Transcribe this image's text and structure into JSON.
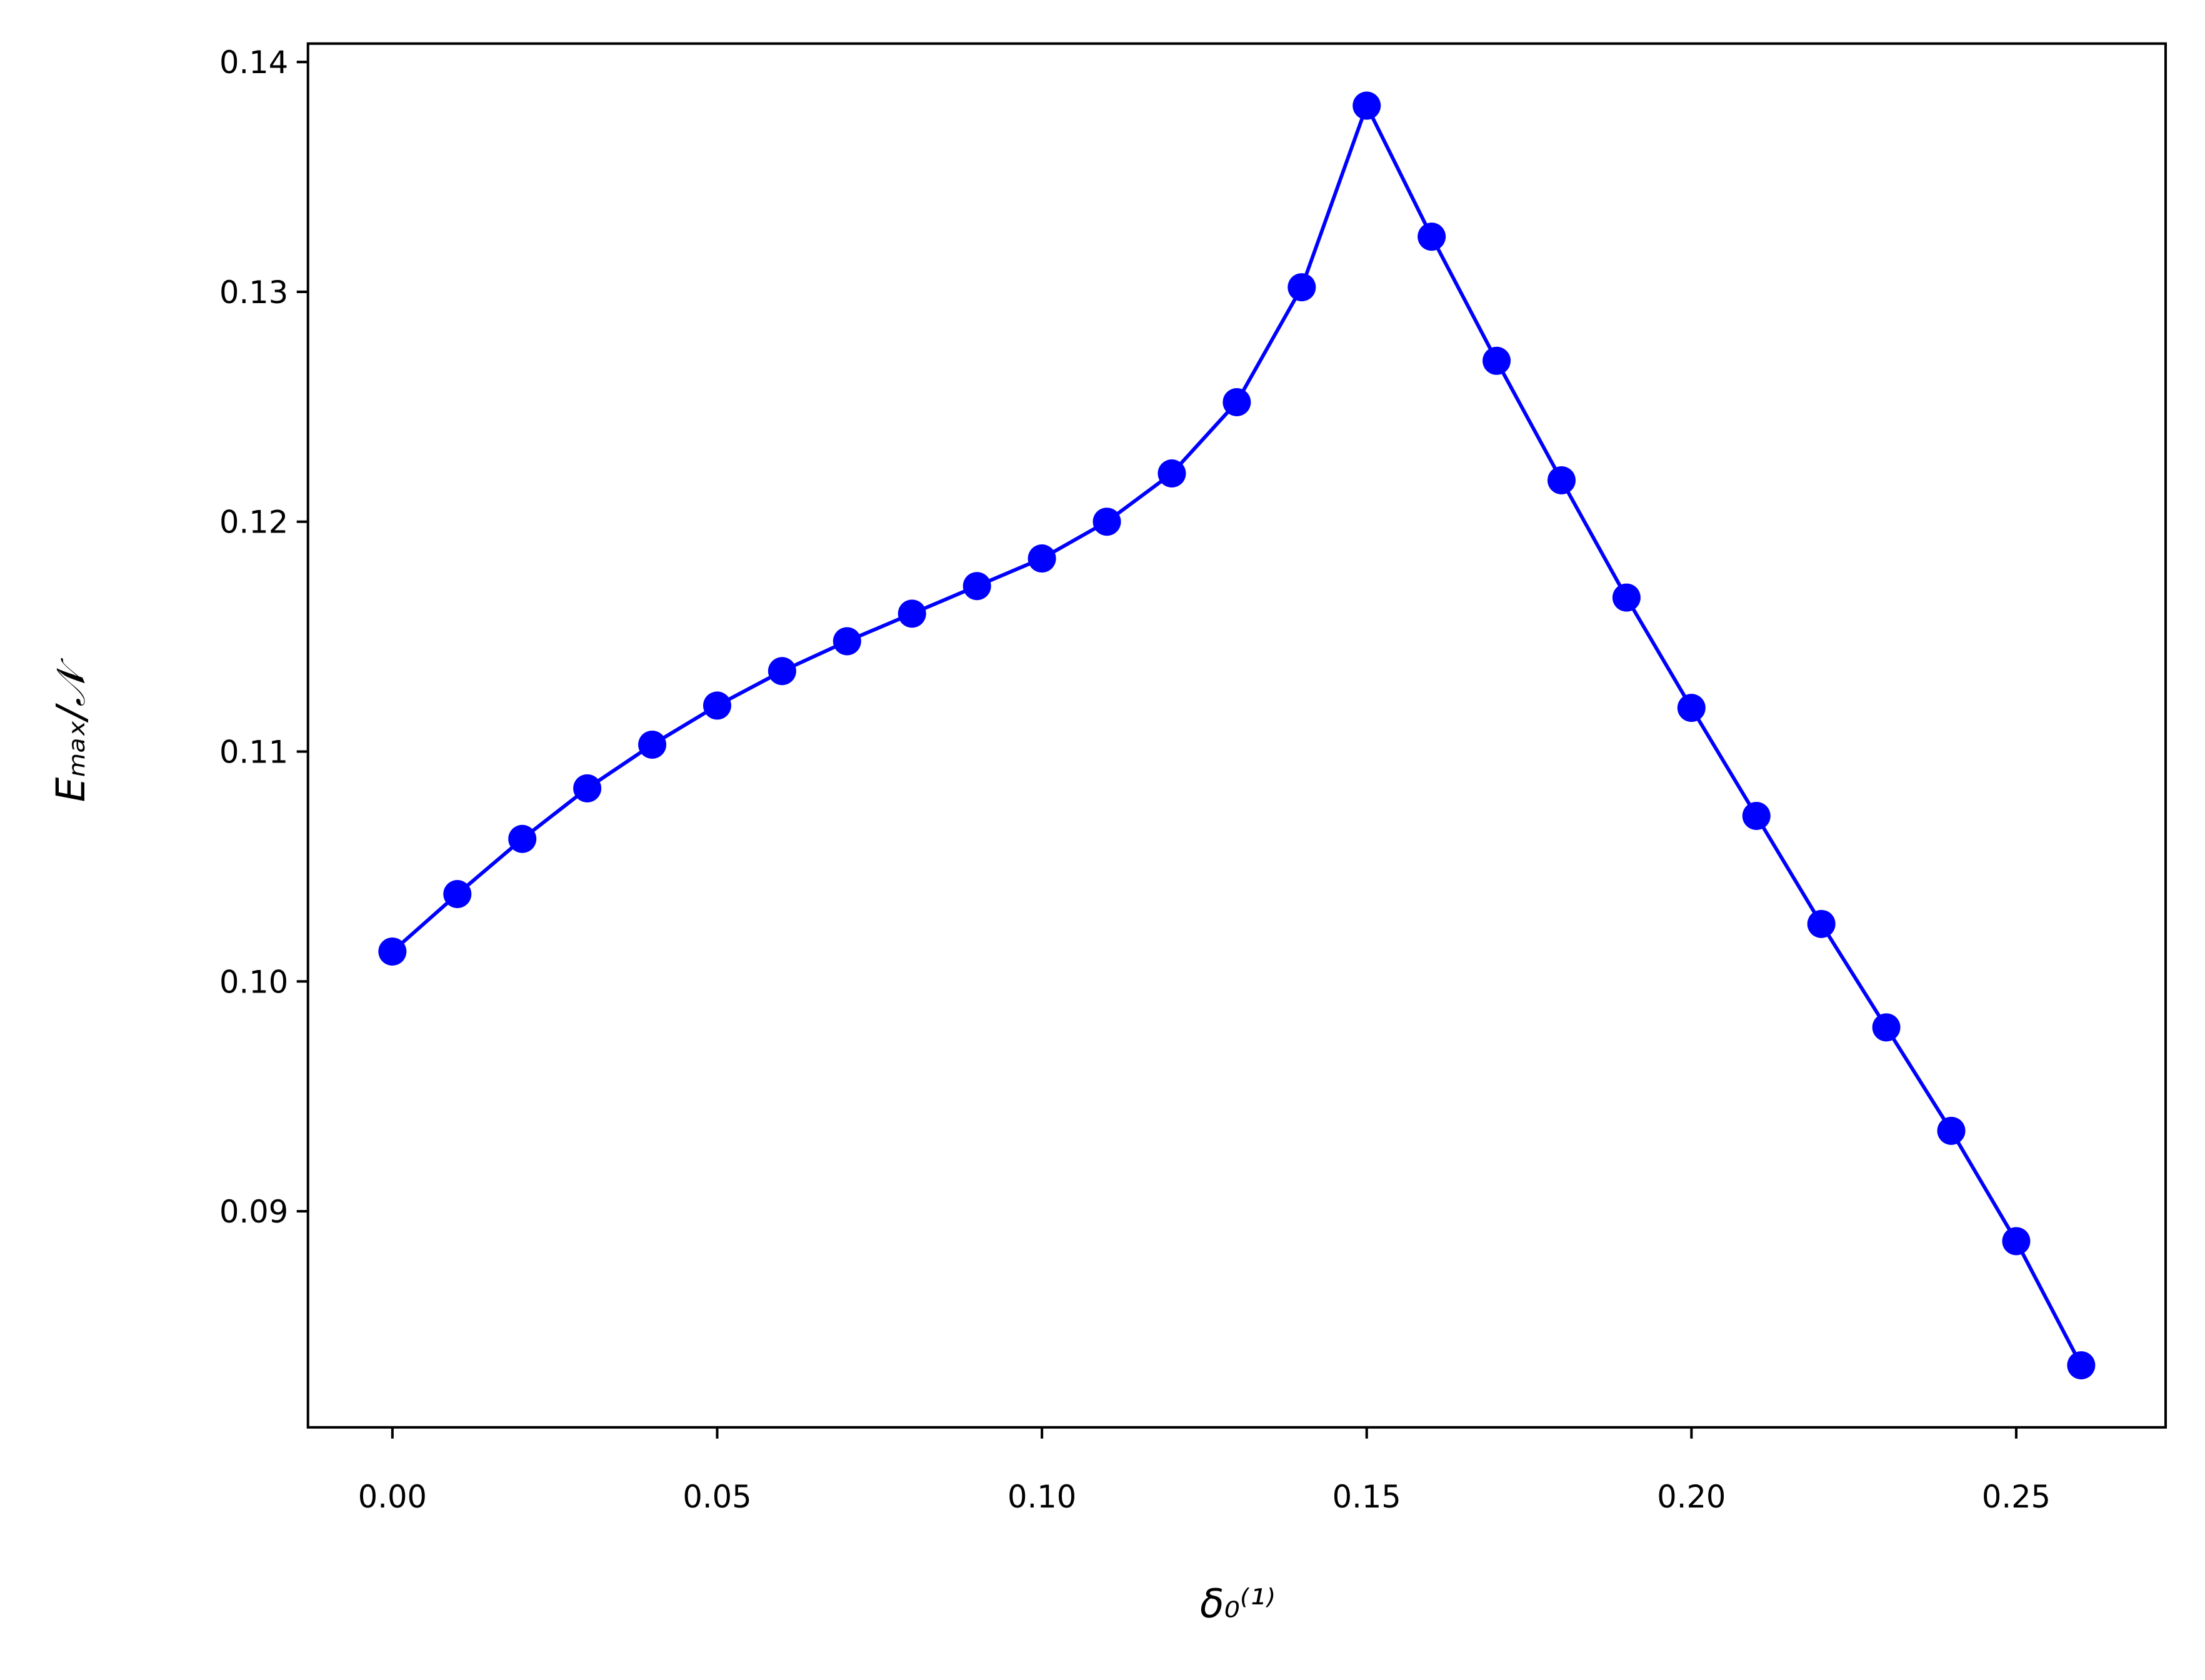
{
  "chart_data": {
    "type": "line",
    "xlabel": "δ₀⁽¹⁾",
    "ylabel": "Eₘₐₓ/𝒩",
    "x": [
      0,
      0.01,
      0.02,
      0.03,
      0.04,
      0.05,
      0.06,
      0.07,
      0.08,
      0.09,
      0.1,
      0.11,
      0.12,
      0.13,
      0.14,
      0.15,
      0.16,
      0.17,
      0.18,
      0.19,
      0.2,
      0.21,
      0.22,
      0.23,
      0.24,
      0.25,
      0.26
    ],
    "series": [
      {
        "color": "#0000ff",
        "marker": "circle",
        "values": [
          0.1013,
          0.1038,
          0.1062,
          0.1084,
          0.1103,
          0.112,
          0.1135,
          0.1148,
          0.116,
          0.1172,
          0.1184,
          0.12,
          0.1221,
          0.1252,
          0.1302,
          0.1381,
          0.1324,
          0.127,
          0.1218,
          0.1167,
          0.1119,
          0.1072,
          0.1025,
          0.098,
          0.0935,
          0.0887,
          0.0833
        ]
      }
    ],
    "xlim": [
      -0.013,
      0.273
    ],
    "ylim": [
      0.0806,
      0.1408
    ],
    "xticks": [
      {
        "value": 0,
        "label": "0.00"
      },
      {
        "value": 0.05,
        "label": "0.05"
      },
      {
        "value": 0.1,
        "label": "0.10"
      },
      {
        "value": 0.15,
        "label": "0.15"
      },
      {
        "value": 0.2,
        "label": "0.20"
      },
      {
        "value": 0.25,
        "label": "0.25"
      }
    ],
    "yticks": [
      0.09,
      {
        "value": 0.1,
        "label": "0.10"
      },
      0.11,
      0.12,
      0.13,
      0.14
    ],
    "grid": false
  }
}
